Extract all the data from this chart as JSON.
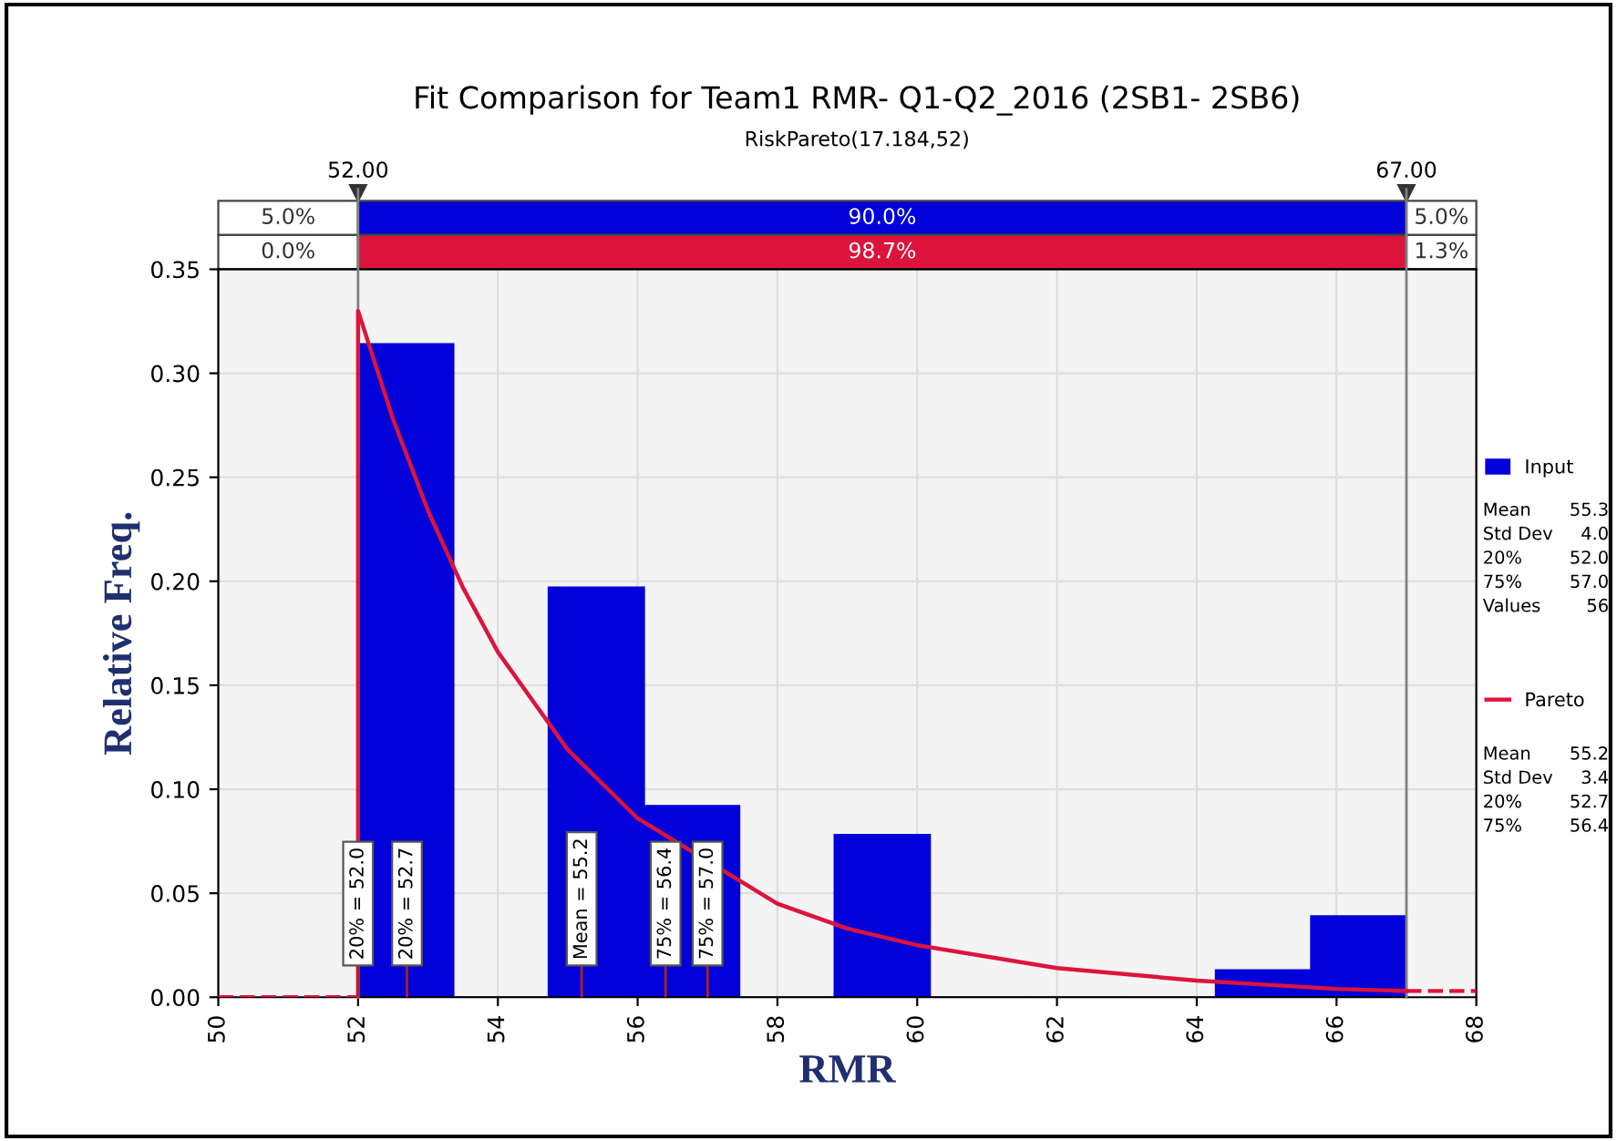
{
  "chart_data": {
    "type": "histogram",
    "title": "Fit Comparison for Team1 RMR- Q1-Q2_2016 (2SB1- 2SB6)",
    "subtitle": "RiskPareto(17.184,52)",
    "xlabel": "RMR",
    "ylabel": "Relative Freq.",
    "bins": [
      52,
      53.364,
      54.727,
      56.091,
      57.455,
      58.818,
      60.182,
      61.545,
      62.909,
      64.273,
      65.636,
      67
    ],
    "series": [
      {
        "name": "Input",
        "color": "#0000d8",
        "values": [
          0.314,
          0,
          0.197,
          0.092,
          0,
          0.078,
          0,
          0,
          0,
          0.013,
          0.039
        ]
      },
      {
        "name": "Pareto",
        "type": "line",
        "color": "#dc143c",
        "line_style": "solid",
        "x": [
          52,
          52,
          52.5,
          53,
          53.5,
          54,
          55,
          56,
          58,
          59,
          60,
          62,
          64,
          66,
          67
        ],
        "values": [
          0,
          0.33,
          0.278,
          0.234,
          0.197,
          0.166,
          0.119,
          0.086,
          0.045,
          0.033,
          0.025,
          0.014,
          0.008,
          0.004,
          0.003
        ]
      },
      {
        "type": "line",
        "color": "#dc143c",
        "line_style": "dashed",
        "x": [
          50,
          52
        ],
        "values": [
          0,
          0
        ]
      },
      {
        "type": "line",
        "color": "#dc143c",
        "line_style": "dashed",
        "x": [
          67,
          68
        ],
        "values": [
          0.003,
          0.003
        ]
      }
    ],
    "xlim": [
      50,
      68
    ],
    "xticks": [
      50,
      52,
      54,
      56,
      58,
      60,
      62,
      64,
      66,
      68
    ],
    "ylim": [
      0,
      0.35
    ],
    "yticks": [
      {
        "value": 0,
        "label": "0.00"
      },
      {
        "value": 0.05,
        "label": "0.05"
      },
      {
        "value": 0.1,
        "label": "0.10"
      },
      {
        "value": 0.15,
        "label": "0.15"
      },
      {
        "value": 0.2,
        "label": "0.20"
      },
      {
        "value": 0.25,
        "label": "0.25"
      },
      {
        "value": 0.3,
        "label": "0.30"
      },
      {
        "value": 0.35,
        "label": "0.35"
      }
    ],
    "ref_lines": [
      {
        "axis": "x",
        "value": 52,
        "label": "52.00",
        "color": "#808080"
      },
      {
        "axis": "x",
        "value": 67,
        "label": "67.00",
        "color": "#808080"
      }
    ],
    "annotations": [
      "5.0%",
      "90.0%",
      "5.0%",
      "0.0%",
      "98.7%",
      "1.3%",
      {
        "text": "20% = 52.0",
        "x": 52.0,
        "y": 0
      },
      {
        "text": "20% = 52.7",
        "x": 52.7,
        "y": 0
      },
      {
        "text": "Mean = 55.2",
        "x": 55.2,
        "y": 0
      },
      {
        "text": "75% = 56.4",
        "x": 56.4,
        "y": 0
      },
      {
        "text": "75% = 57.0",
        "x": 57.0,
        "y": 0
      },
      "Mean 55.3",
      "Std Dev 4.0",
      "20% 52.0",
      "75% 57.0",
      "Values 56",
      "Mean 55.2",
      "Std Dev 3.4",
      "20% 52.7",
      "75% 56.4"
    ],
    "grid": true,
    "legend": "right"
  }
}
